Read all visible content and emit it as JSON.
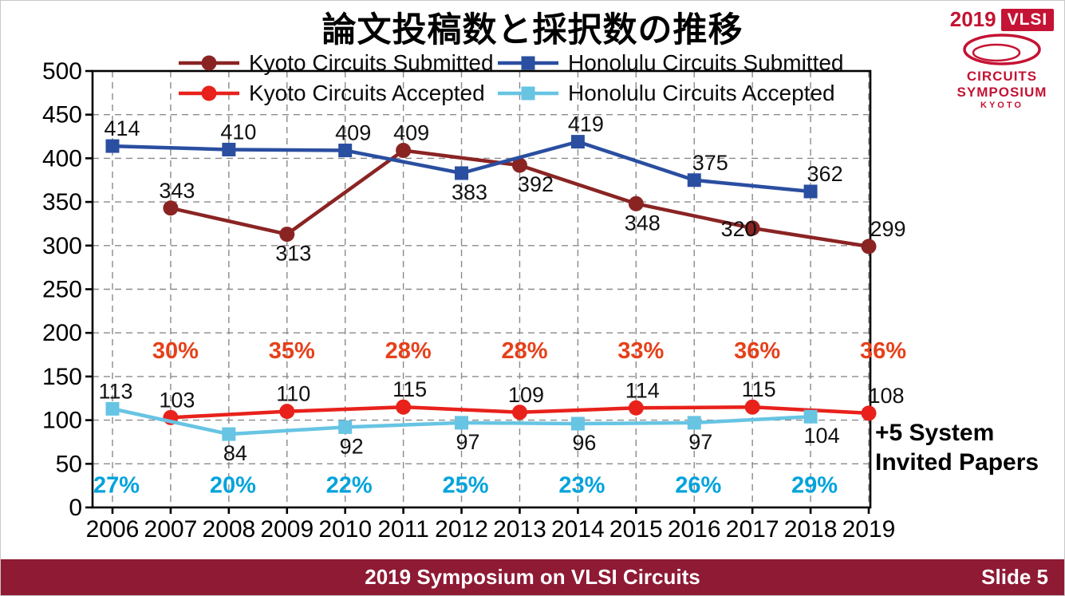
{
  "title": "論文投稿数と採択数の推移",
  "logo": {
    "year": "2019",
    "name": "VLSI",
    "line1": "CIRCUITS",
    "line2": "SYMPOSIUM",
    "line3": "KYOTO"
  },
  "annotation": {
    "line1": "+5 System",
    "line2": "Invited Papers"
  },
  "footer": {
    "center": "2019 Symposium on VLSI Circuits",
    "right": "Slide 5"
  },
  "colors": {
    "kyoto_submitted": "#8A2423",
    "honolulu_submitted": "#2A4EA0",
    "kyoto_accepted": "#E8211B",
    "honolulu_accepted": "#67C4E3",
    "kyoto_rate_text": "#E6401A",
    "honolulu_rate_text": "#00A3DC",
    "footer_bg": "#8E1A34",
    "logo_red": "#C41334",
    "grid": "#8A8A8A"
  },
  "chart_data": {
    "type": "line",
    "title": "論文投稿数と採択数の推移",
    "x_range": [
      2006,
      2019
    ],
    "x_ticks": [
      2006,
      2007,
      2008,
      2009,
      2010,
      2011,
      2012,
      2013,
      2014,
      2015,
      2016,
      2017,
      2018,
      2019
    ],
    "ylim": [
      0,
      500
    ],
    "yticks": [
      0,
      50,
      100,
      150,
      200,
      250,
      300,
      350,
      400,
      450,
      500
    ],
    "grid": true,
    "legend_position": "top",
    "annotations": [
      "+5 System Invited Papers"
    ],
    "series": [
      {
        "name": "Kyoto Circuits Submitted",
        "color_key": "kyoto_submitted",
        "marker": "circle",
        "points": [
          {
            "year": 2007,
            "value": 343,
            "pos": "above"
          },
          {
            "year": 2009,
            "value": 313,
            "pos": "below"
          },
          {
            "year": 2011,
            "value": 409,
            "pos": "above",
            "dx": 10
          },
          {
            "year": 2013,
            "value": 392,
            "pos": "below",
            "dx": 20
          },
          {
            "year": 2015,
            "value": 348,
            "pos": "below"
          },
          {
            "year": 2017,
            "value": 320,
            "pos": "below",
            "dx": -17,
            "dy": 10
          },
          {
            "year": 2019,
            "value": 299,
            "pos": "above",
            "dx": 24
          }
        ]
      },
      {
        "name": "Honolulu Circuits Submitted",
        "color_key": "honolulu_submitted",
        "marker": "square",
        "points": [
          {
            "year": 2006,
            "value": 414,
            "pos": "above",
            "dx": 12
          },
          {
            "year": 2008,
            "value": 410,
            "pos": "above",
            "dx": 12
          },
          {
            "year": 2010,
            "value": 409,
            "pos": "above",
            "dx": 10
          },
          {
            "year": 2012,
            "value": 383,
            "pos": "below",
            "dx": 10
          },
          {
            "year": 2014,
            "value": 419,
            "pos": "above",
            "dx": 10
          },
          {
            "year": 2016,
            "value": 375,
            "pos": "above",
            "dx": 20
          },
          {
            "year": 2018,
            "value": 362,
            "pos": "above",
            "dx": 18
          }
        ]
      },
      {
        "name": "Kyoto Circuits Accepted",
        "color_key": "kyoto_accepted",
        "marker": "circle",
        "points": [
          {
            "year": 2007,
            "value": 103,
            "pos": "above"
          },
          {
            "year": 2009,
            "value": 110,
            "pos": "above"
          },
          {
            "year": 2011,
            "value": 115,
            "pos": "above"
          },
          {
            "year": 2013,
            "value": 109,
            "pos": "above"
          },
          {
            "year": 2015,
            "value": 114,
            "pos": "above"
          },
          {
            "year": 2017,
            "value": 115,
            "pos": "above"
          },
          {
            "year": 2019,
            "value": 108,
            "pos": "above",
            "dx": 22
          }
        ]
      },
      {
        "name": "Honolulu Circuits Accepted",
        "color_key": "honolulu_accepted",
        "marker": "square",
        "points": [
          {
            "year": 2006,
            "value": 113,
            "pos": "above",
            "dx": 4
          },
          {
            "year": 2008,
            "value": 84,
            "pos": "below"
          },
          {
            "year": 2010,
            "value": 92,
            "pos": "below"
          },
          {
            "year": 2012,
            "value": 97,
            "pos": "below"
          },
          {
            "year": 2014,
            "value": 96,
            "pos": "below"
          },
          {
            "year": 2016,
            "value": 97,
            "pos": "below"
          },
          {
            "year": 2018,
            "value": 104,
            "pos": "below",
            "dx": 14
          }
        ]
      }
    ],
    "rate_rows": [
      {
        "color_key": "kyoto_rate_text",
        "baseline_value": 171,
        "dx": 6,
        "items": [
          {
            "year": 2007,
            "text": "30%"
          },
          {
            "year": 2009,
            "text": "35%"
          },
          {
            "year": 2011,
            "text": "28%"
          },
          {
            "year": 2013,
            "text": "28%"
          },
          {
            "year": 2015,
            "text": "33%"
          },
          {
            "year": 2017,
            "text": "36%"
          },
          {
            "year": 2019,
            "text": "36%",
            "dx": 12
          }
        ]
      },
      {
        "color_key": "honolulu_rate_text",
        "baseline_value": 17,
        "dx": 5,
        "items": [
          {
            "year": 2006,
            "text": "27%"
          },
          {
            "year": 2008,
            "text": "20%"
          },
          {
            "year": 2010,
            "text": "22%"
          },
          {
            "year": 2012,
            "text": "25%"
          },
          {
            "year": 2014,
            "text": "23%"
          },
          {
            "year": 2016,
            "text": "26%"
          },
          {
            "year": 2018,
            "text": "29%"
          }
        ]
      }
    ]
  }
}
